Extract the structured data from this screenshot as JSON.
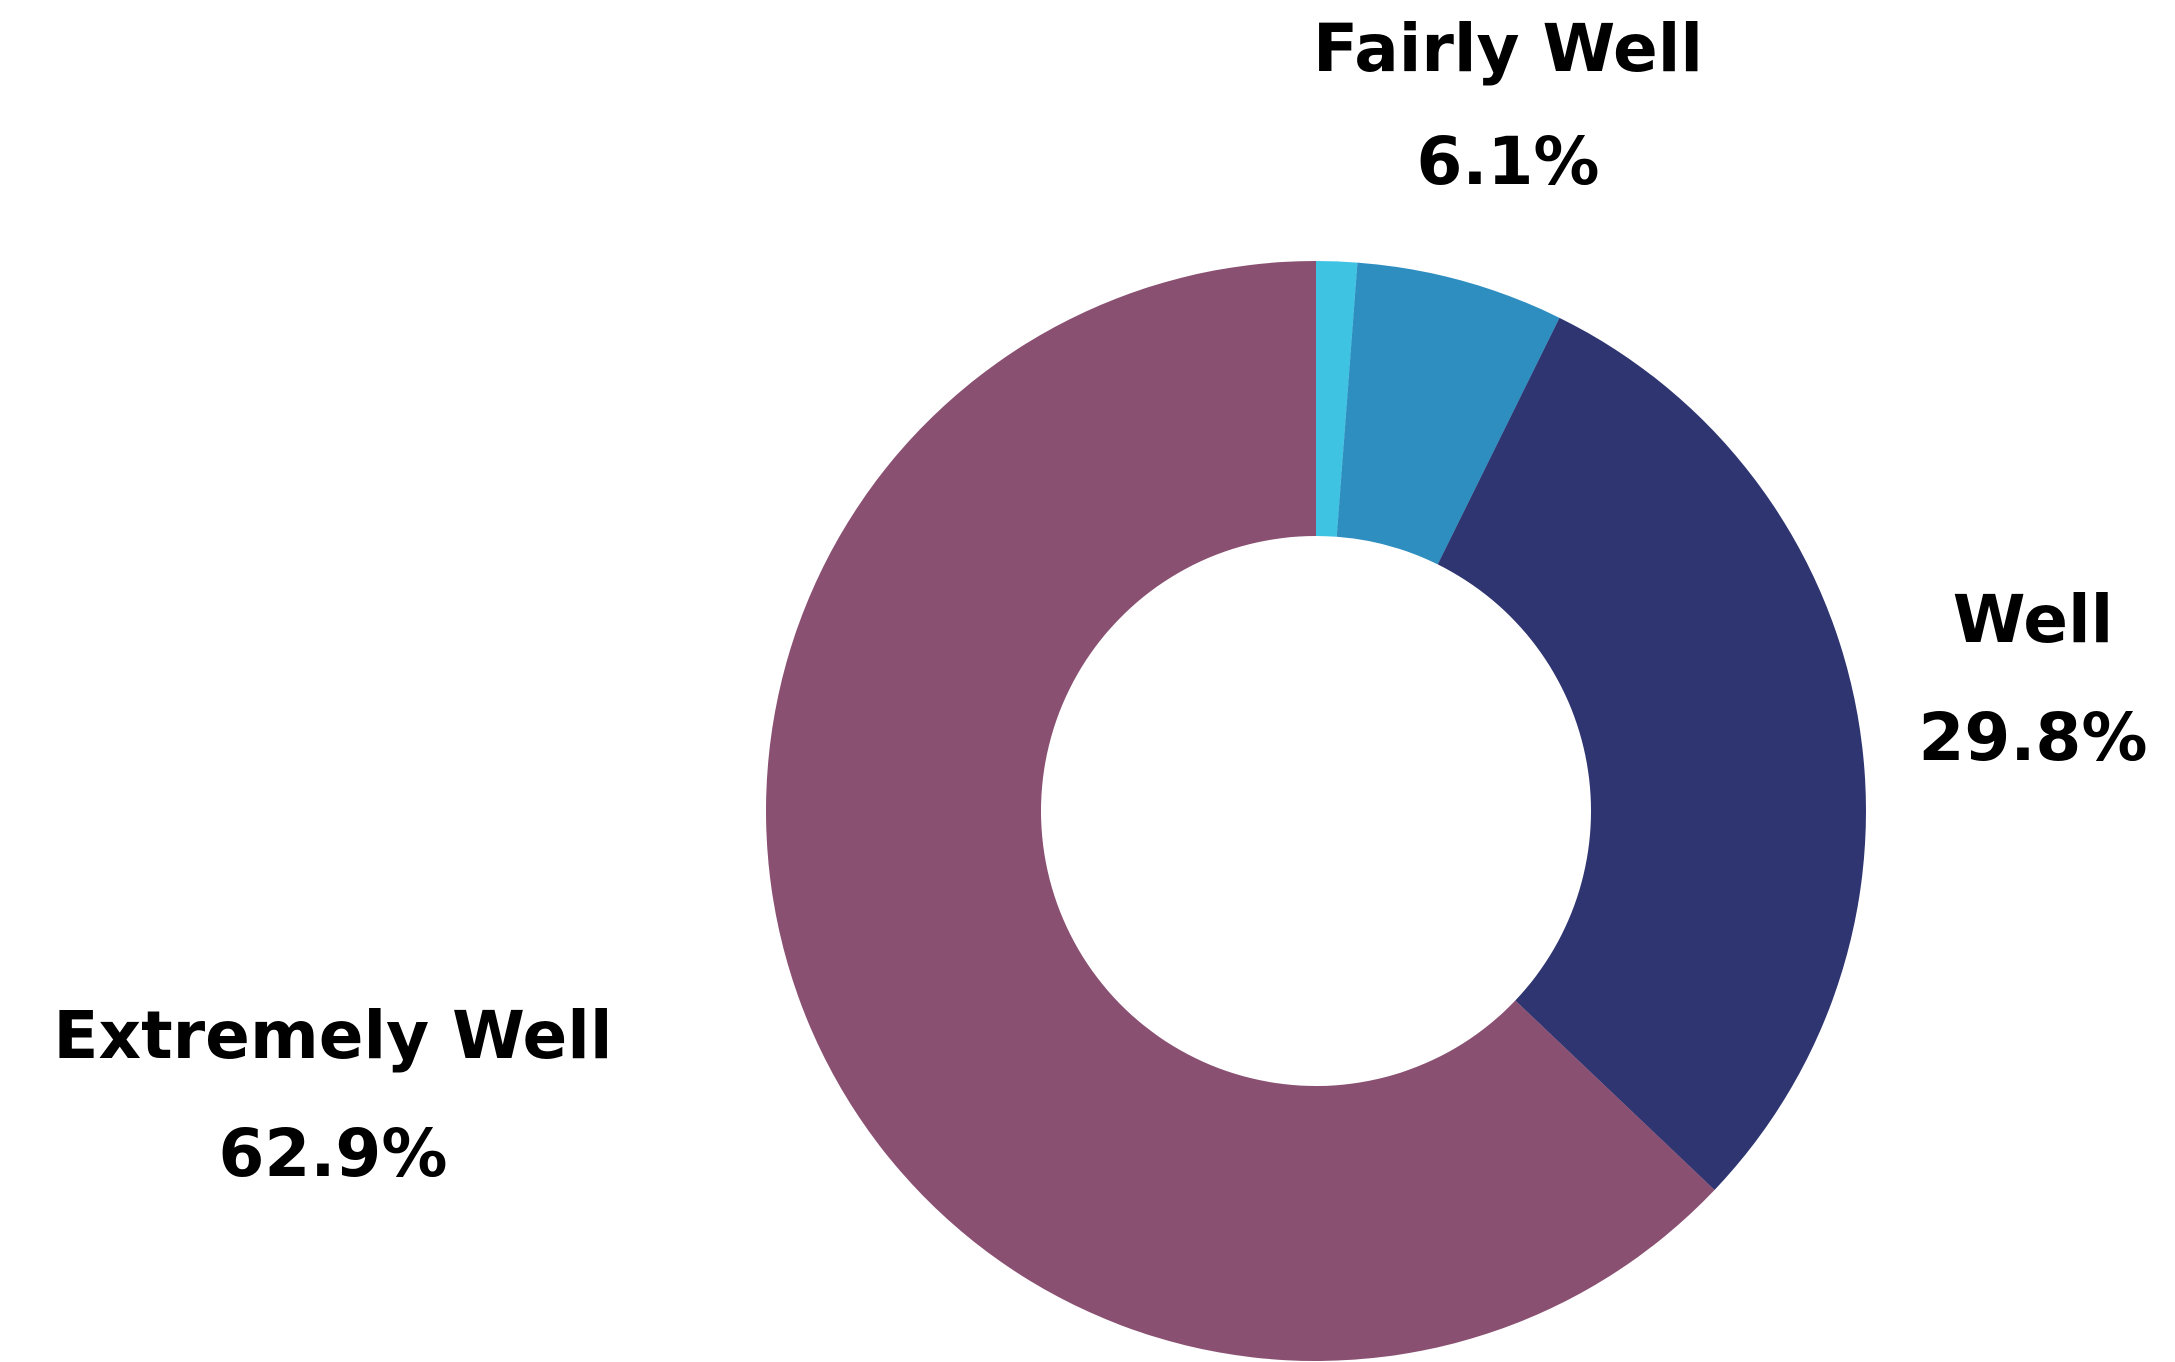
{
  "chart_data": {
    "type": "donut",
    "categories": [
      null,
      "Fairly Well",
      "Well",
      "Extremely Well"
    ],
    "values": [
      1.2,
      6.1,
      29.8,
      62.9
    ],
    "value_labels": [
      null,
      "6.1%",
      "29.8%",
      "62.9%"
    ],
    "colors": [
      "#3ec3e3",
      "#2e8ec0",
      "#2f3571",
      "#8a5072"
    ]
  }
}
